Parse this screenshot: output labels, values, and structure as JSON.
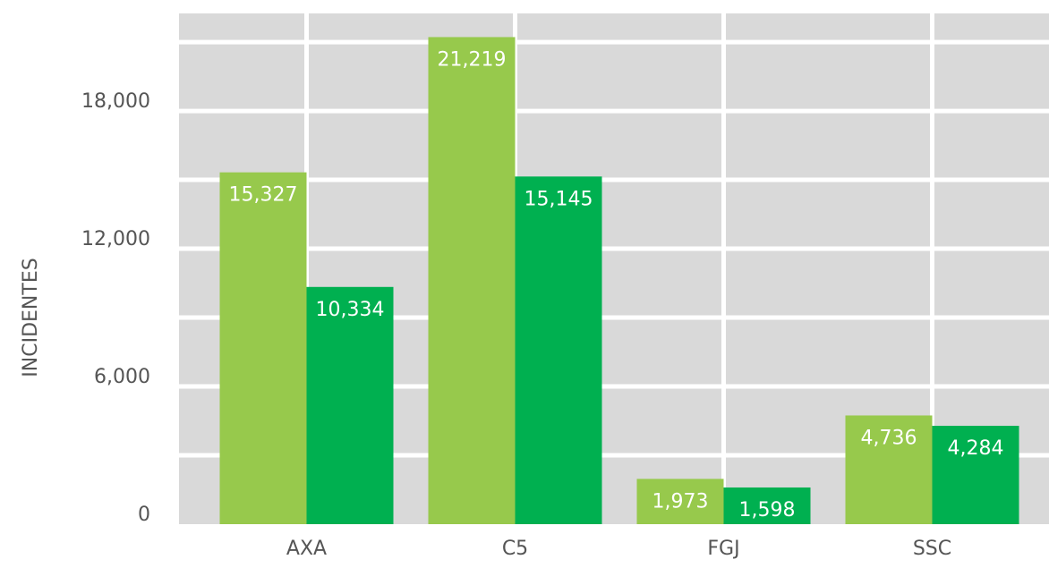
{
  "chart_data": {
    "type": "bar",
    "categories": [
      "AXA",
      "C5",
      "FGJ",
      "SSC"
    ],
    "series": [
      {
        "color": "#97c94c",
        "values": [
          15327,
          21219,
          1973,
          4736
        ],
        "value_labels": [
          "15,327",
          "21,219",
          "1,973",
          "4,736"
        ]
      },
      {
        "color": "#00b050",
        "values": [
          10334,
          15145,
          1598,
          4284
        ],
        "value_labels": [
          "10,334",
          "15,145",
          "1,598",
          "4,284"
        ]
      }
    ],
    "y_label": "INCIDENTES",
    "ylim": [
      0,
      22250
    ],
    "yticks": [
      0,
      {
        "value": 6000,
        "label": "6,000"
      },
      {
        "value": 12000,
        "label": "12,000"
      },
      {
        "value": 18000,
        "label": "18,000"
      }
    ],
    "y_minor_ticks": [
      3000,
      9000,
      15000,
      21000
    ],
    "grid": true
  }
}
